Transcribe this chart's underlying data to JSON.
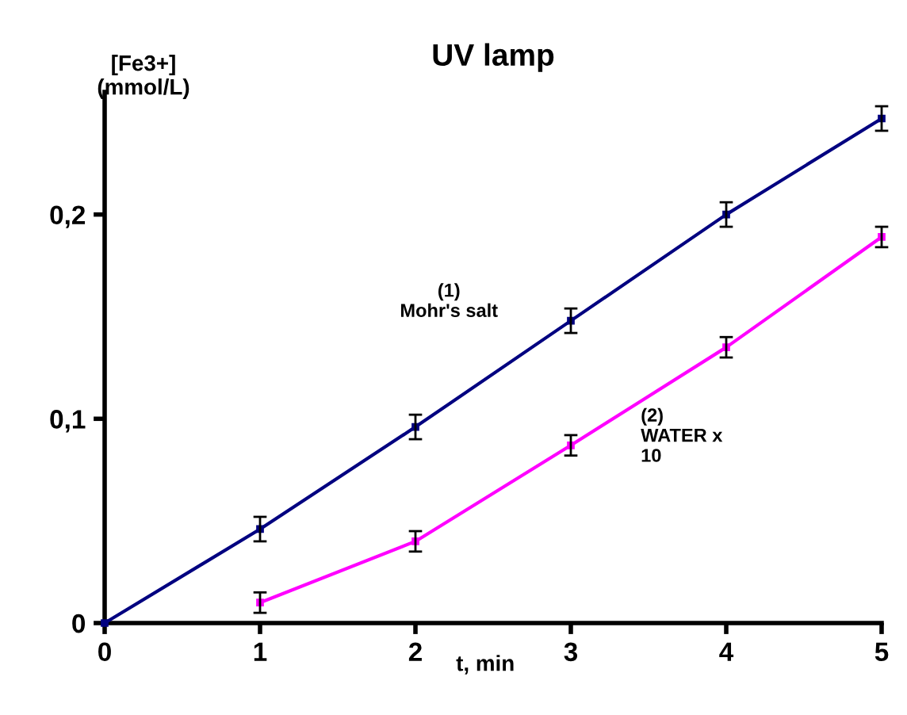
{
  "chart_data": {
    "type": "line",
    "title": "UV lamp",
    "xlabel": "t, min",
    "ylabel": "[Fe3+]\n(mmol/L)",
    "x": [
      0,
      1,
      2,
      3,
      4,
      5
    ],
    "series": [
      {
        "name": "(1)\nMohr's salt",
        "color": "#000080",
        "values": [
          0,
          0.046,
          0.096,
          0.148,
          0.2,
          0.247
        ],
        "errors": [
          null,
          0.006,
          0.006,
          0.006,
          0.006,
          0.006
        ]
      },
      {
        "name": "(2)\nWATER x\n10",
        "color": "#ff00ff",
        "values": [
          null,
          0.01,
          0.04,
          0.087,
          0.135,
          0.189
        ],
        "errors": [
          null,
          0.005,
          0.005,
          0.005,
          0.005,
          0.005
        ]
      }
    ],
    "xlim": [
      0,
      5
    ],
    "ylim": [
      0,
      0.26
    ],
    "xticks": [
      0,
      1,
      2,
      3,
      4,
      5
    ],
    "yticks": [
      {
        "value": 0,
        "label": "0"
      },
      {
        "value": 0.1,
        "label": "0,1"
      },
      {
        "value": 0.2,
        "label": "0,2"
      }
    ],
    "marker": "square",
    "legend": false,
    "grid": false
  }
}
